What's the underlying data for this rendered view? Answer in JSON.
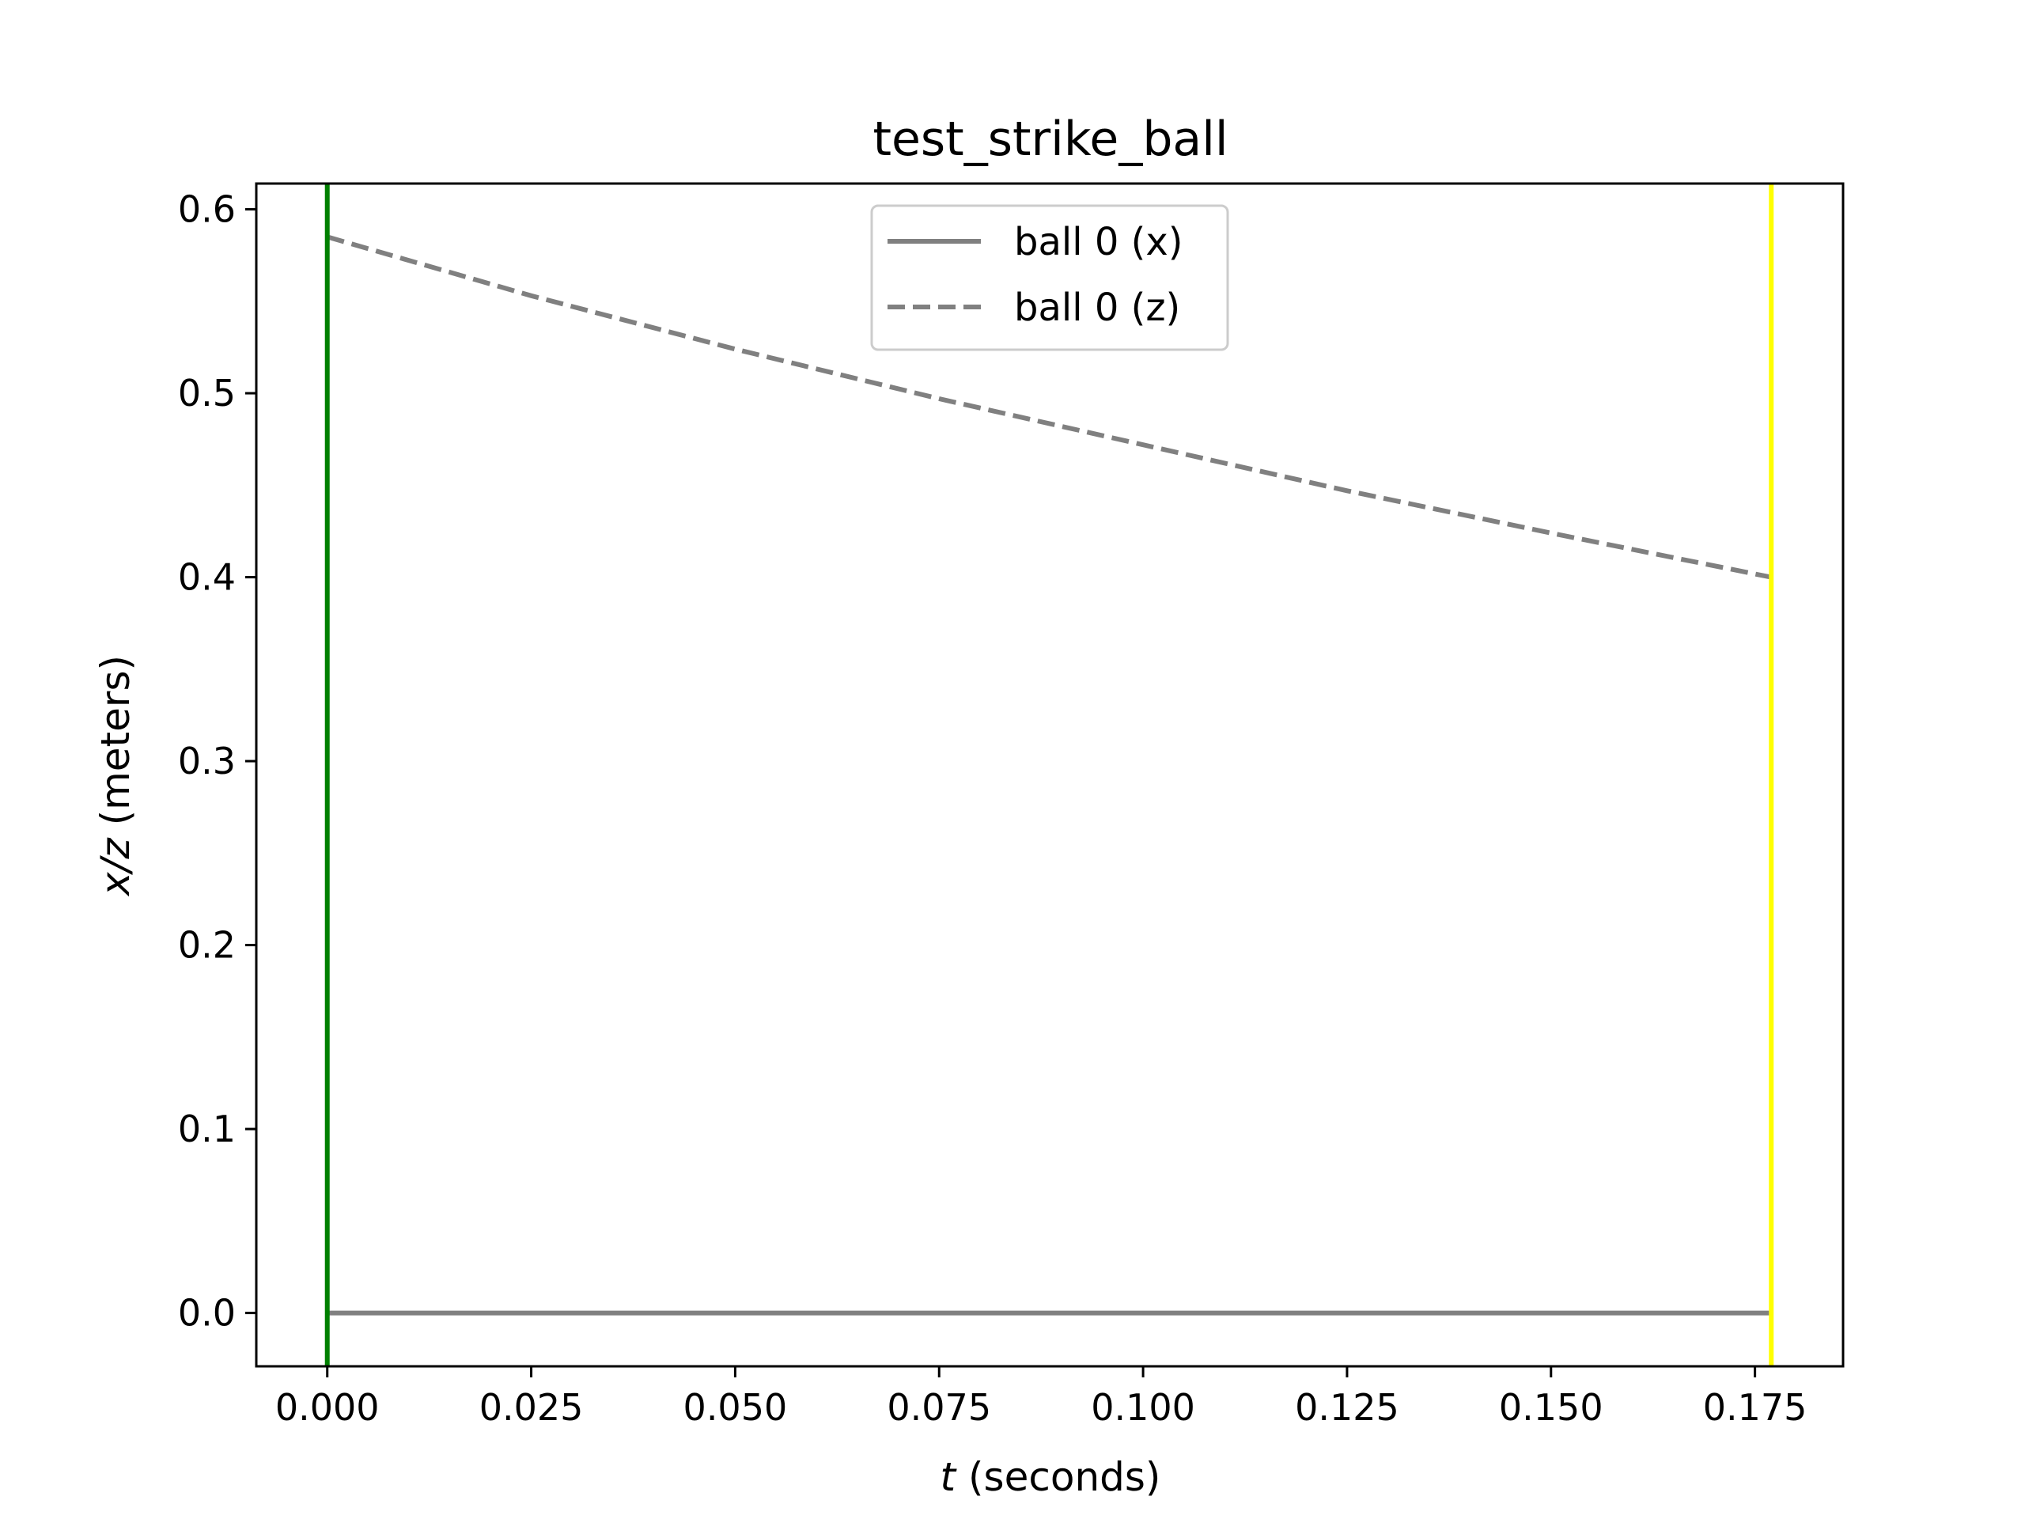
{
  "chart_data": {
    "type": "line",
    "title": "test_strike_ball",
    "xlabel": {
      "var": "t",
      "rest": " (seconds)"
    },
    "ylabel": {
      "var": "x/z",
      "rest": " (meters)"
    },
    "xlim": [
      -0.0087,
      0.1858
    ],
    "ylim": [
      -0.029,
      0.614
    ],
    "xticks": [
      0.0,
      0.025,
      0.05,
      0.075,
      0.1,
      0.125,
      0.15,
      0.175
    ],
    "xtick_labels": [
      "0.000",
      "0.025",
      "0.050",
      "0.075",
      "0.100",
      "0.125",
      "0.150",
      "0.175"
    ],
    "yticks": [
      0.0,
      0.1,
      0.2,
      0.3,
      0.4,
      0.5,
      0.6
    ],
    "ytick_labels": [
      "0.0",
      "0.1",
      "0.2",
      "0.3",
      "0.4",
      "0.5",
      "0.6"
    ],
    "grid": false,
    "legend_position": "upper center",
    "series": [
      {
        "name": "ball 0 (x)",
        "color": "#808080",
        "style": "solid",
        "x": [
          0.0,
          0.177
        ],
        "y": [
          0.0,
          0.0
        ]
      },
      {
        "name": "ball 0 (z)",
        "color": "#808080",
        "style": "dashed",
        "x": [
          0.0,
          0.025,
          0.05,
          0.075,
          0.1,
          0.125,
          0.15,
          0.177
        ],
        "y": [
          0.585,
          0.553,
          0.524,
          0.497,
          0.472,
          0.447,
          0.424,
          0.4
        ]
      }
    ],
    "vlines": [
      {
        "x": 0.0,
        "color": "#008000"
      },
      {
        "x": 0.177,
        "color": "#ffff00"
      }
    ]
  }
}
